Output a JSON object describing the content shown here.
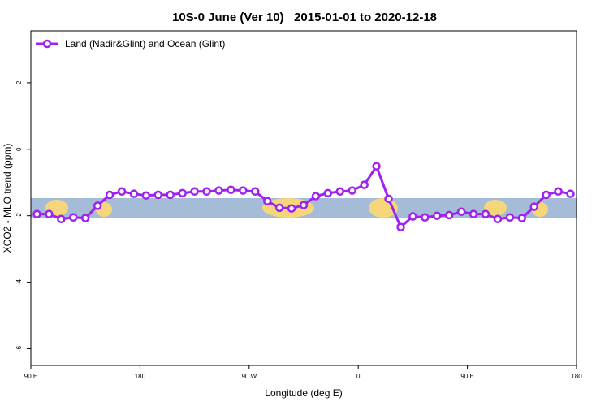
{
  "chart_data": {
    "type": "line",
    "title": "10S-0 June (Ver 10)   2015-01-01 to 2020-12-18",
    "xlabel": "Longitude (deg E)",
    "ylabel": "XCO2 - MLO trend (ppm)",
    "x": [
      95,
      105,
      115,
      125,
      135,
      145,
      155,
      165,
      175,
      185,
      195,
      205,
      215,
      225,
      235,
      245,
      255,
      265,
      275,
      285,
      295,
      305,
      315,
      325,
      335,
      345,
      355,
      365,
      375,
      385,
      395,
      405,
      415,
      425,
      435,
      445,
      455,
      465,
      475,
      485,
      495,
      505,
      515,
      525,
      535
    ],
    "series": [
      {
        "name": "Land (Nadir&Glint) and Ocean (Glint)",
        "color": "#a020f0",
        "values": [
          -1.95,
          -1.95,
          -2.1,
          -2.05,
          -2.07,
          -1.7,
          -1.37,
          -1.27,
          -1.34,
          -1.39,
          -1.37,
          -1.37,
          -1.32,
          -1.27,
          -1.27,
          -1.24,
          -1.22,
          -1.24,
          -1.27,
          -1.56,
          -1.76,
          -1.78,
          -1.68,
          -1.41,
          -1.32,
          -1.27,
          -1.24,
          -1.07,
          -0.51,
          -1.49,
          -2.34,
          -2.02,
          -2.05,
          -2.0,
          -1.98,
          -1.88,
          -1.95,
          -1.95,
          -2.1,
          -2.05,
          -2.07,
          -1.73,
          -1.37,
          -1.27,
          -1.34
        ]
      }
    ],
    "xlim": [
      90,
      540
    ],
    "xticks": [
      {
        "value": 90,
        "label": "90 E"
      },
      180,
      {
        "value": 270,
        "label": "90 W"
      },
      {
        "value": 360,
        "label": "0"
      },
      {
        "value": 450,
        "label": "90 E"
      },
      {
        "value": 540,
        "label": "180"
      }
    ],
    "ylim": [
      -6.5,
      3.56
    ],
    "yticks": [
      2,
      0,
      -2,
      -4,
      -6
    ],
    "legend": "top-left"
  }
}
